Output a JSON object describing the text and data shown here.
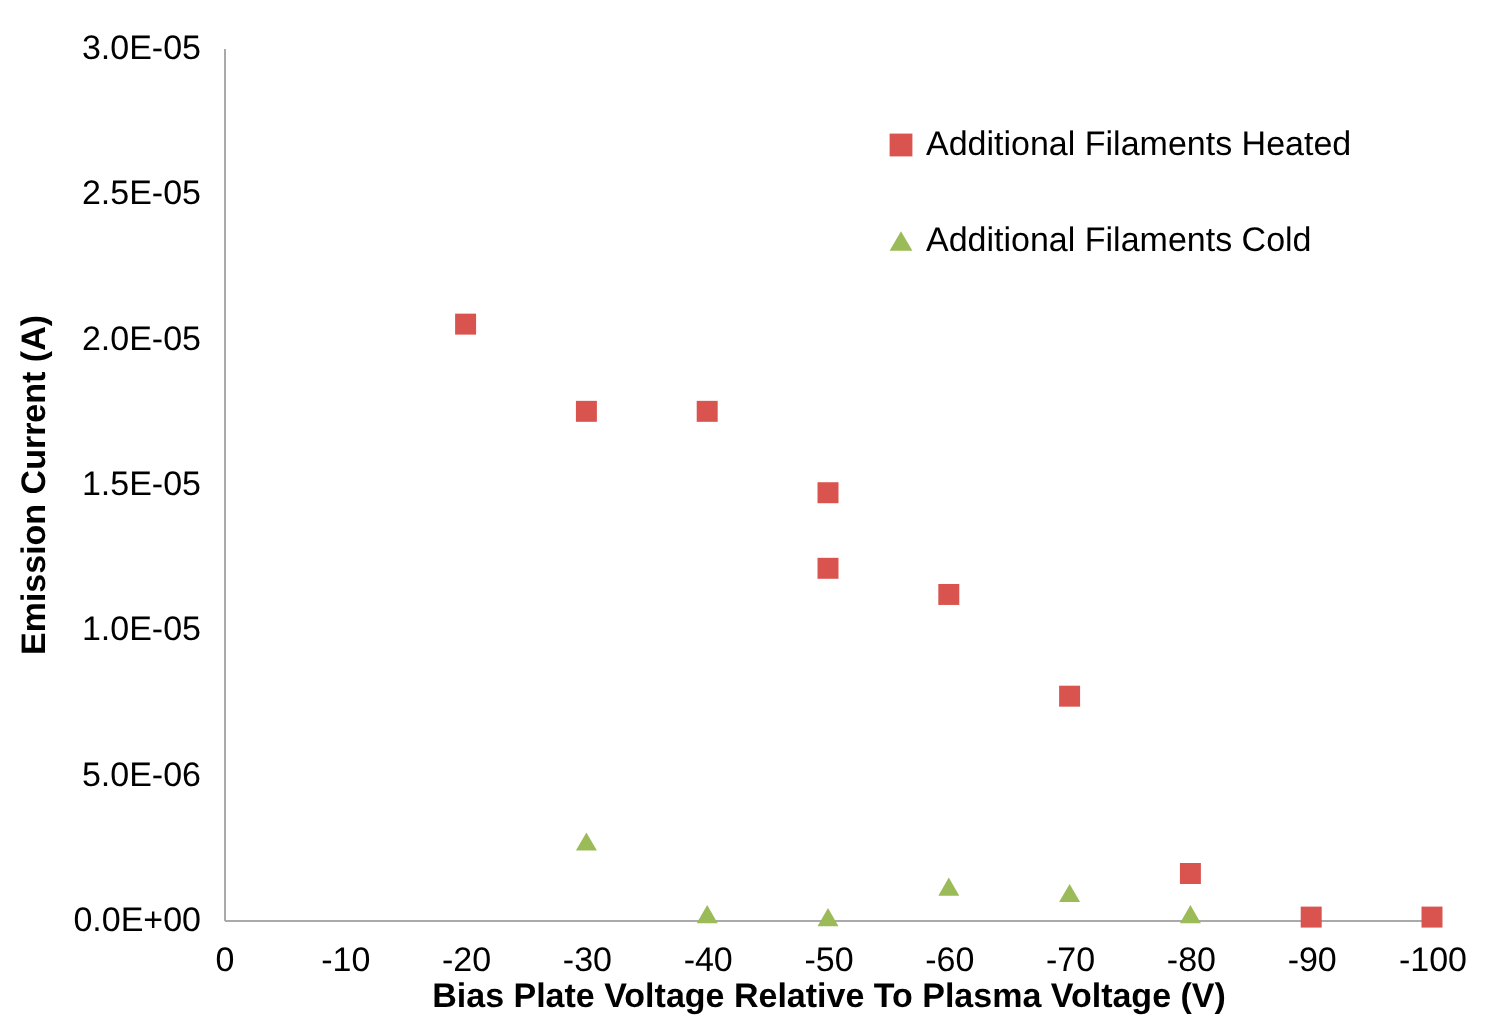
{
  "chart_data": {
    "type": "scatter",
    "xlabel": "Bias Plate Voltage Relative To Plasma Voltage (V)",
    "ylabel": "Emission Current (A)",
    "x": [
      -20,
      -30,
      -40,
      -50,
      -50,
      -60,
      -70,
      -80,
      -90,
      -100
    ],
    "series": [
      {
        "name": "Additional Filaments Heated",
        "color": "#d9534f",
        "marker": "square",
        "values": [
          2.05e-05,
          1.75e-05,
          1.75e-05,
          1.47e-05,
          1.21e-05,
          1.12e-05,
          7.7e-06,
          1.6e-06,
          1e-07,
          1e-07
        ]
      },
      {
        "name": "Additional Filaments Cold",
        "color": "#9bbb59",
        "marker": "triangle",
        "x": [
          -30,
          -40,
          -50,
          -60,
          -70,
          -80
        ],
        "values": [
          2.7e-06,
          2e-07,
          1e-07,
          1.15e-06,
          9.3e-07,
          2e-07
        ]
      }
    ],
    "xlim": [
      0,
      -100
    ],
    "xticks": [
      0,
      -10,
      -20,
      -30,
      -40,
      -50,
      -60,
      -70,
      -80,
      -90,
      -100
    ],
    "ylim": [
      0,
      3e-05
    ],
    "yticks": [
      {
        "value": 0,
        "label": "0.0E+00"
      },
      {
        "value": 5e-06,
        "label": "5.0E-06"
      },
      {
        "value": 1e-05,
        "label": "1.0E-05"
      },
      {
        "value": 1.5e-05,
        "label": "1.5E-05"
      },
      {
        "value": 2e-05,
        "label": "2.0E-05"
      },
      {
        "value": 2.5e-05,
        "label": "2.5E-05"
      },
      {
        "value": 3e-05,
        "label": "3.0E-05"
      }
    ],
    "grid": false,
    "legend": "top right"
  }
}
